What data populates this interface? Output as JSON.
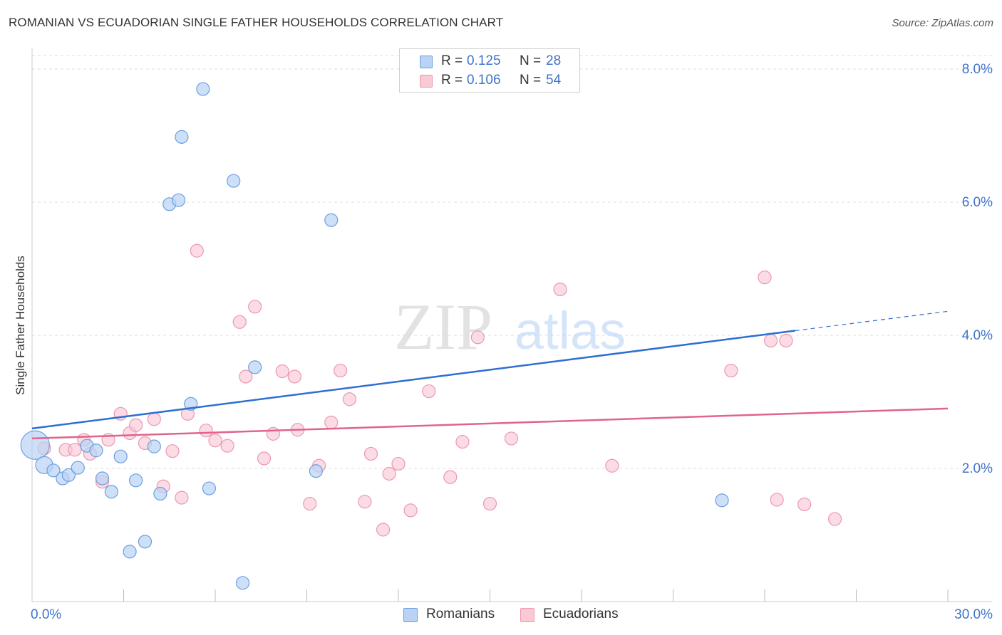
{
  "header": {
    "title": "ROMANIAN VS ECUADORIAN SINGLE FATHER HOUSEHOLDS CORRELATION CHART",
    "source": "Source: ZipAtlas.com"
  },
  "legend_top": {
    "rows": [
      {
        "r_label": "R =",
        "r_value": "0.125",
        "n_label": "N =",
        "n_value": "28"
      },
      {
        "r_label": "R =",
        "r_value": "0.106",
        "n_label": "N =",
        "n_value": "54"
      }
    ]
  },
  "legend_bottom": {
    "items": [
      "Romanians",
      "Ecuadorians"
    ]
  },
  "watermark": {
    "zip": "ZIP",
    "atlas": "atlas"
  },
  "colors": {
    "romanians_fill": "#b9d3f5",
    "romanians_stroke": "#6b9ee0",
    "romanians_line": "#2d6fd2",
    "ecuadorians_fill": "#f9c9d6",
    "ecuadorians_stroke": "#ec97b2",
    "ecuadorians_line": "#e0648c",
    "tick_label": "#3f74c9",
    "grid": "#dcdcdc"
  },
  "chart_data": {
    "type": "scatter",
    "title": "ROMANIAN VS ECUADORIAN SINGLE FATHER HOUSEHOLDS CORRELATION CHART",
    "xlabel": "",
    "ylabel": "Single Father Households",
    "xlim": [
      0,
      30
    ],
    "ylim": [
      0,
      8.4
    ],
    "x_tick_labels": [
      "0.0%",
      "30.0%"
    ],
    "y_ticks": [
      2,
      4,
      6,
      8
    ],
    "y_tick_labels": [
      "2.0%",
      "4.0%",
      "6.0%",
      "8.0%"
    ],
    "grid": true,
    "legend_position": "top-center",
    "series": [
      {
        "name": "Romanians",
        "r": 0.125,
        "n": 28,
        "trend": {
          "x0": 0,
          "y0": 2.6,
          "x1": 25,
          "y1": 4.07,
          "dashed_to_x": 30,
          "dashed_to_y": 4.36
        },
        "points": [
          [
            0.1,
            2.35,
            20
          ],
          [
            0.4,
            2.05,
            12
          ],
          [
            0.7,
            1.97,
            9
          ],
          [
            1.0,
            1.85,
            9
          ],
          [
            1.2,
            1.9,
            9
          ],
          [
            1.5,
            2.01,
            9
          ],
          [
            1.8,
            2.34,
            9
          ],
          [
            2.1,
            2.27,
            9
          ],
          [
            2.3,
            1.85,
            9
          ],
          [
            2.6,
            1.65,
            9
          ],
          [
            2.9,
            2.18,
            9
          ],
          [
            3.2,
            0.75,
            9
          ],
          [
            3.4,
            1.82,
            9
          ],
          [
            3.7,
            0.9,
            9
          ],
          [
            4.0,
            2.33,
            9
          ],
          [
            4.2,
            1.62,
            9
          ],
          [
            4.5,
            5.97,
            9
          ],
          [
            4.8,
            6.03,
            9
          ],
          [
            4.9,
            6.98,
            9
          ],
          [
            5.2,
            2.97,
            9
          ],
          [
            5.6,
            7.7,
            9
          ],
          [
            5.8,
            1.7,
            9
          ],
          [
            6.6,
            6.32,
            9
          ],
          [
            6.9,
            0.28,
            9
          ],
          [
            7.3,
            3.52,
            9
          ],
          [
            9.3,
            1.96,
            9
          ],
          [
            9.8,
            5.73,
            9
          ],
          [
            22.6,
            1.52,
            9
          ]
        ]
      },
      {
        "name": "Ecuadorians",
        "r": 0.106,
        "n": 54,
        "trend": {
          "x0": 0,
          "y0": 2.45,
          "x1": 30,
          "y1": 2.9
        },
        "points": [
          [
            0.4,
            2.3,
            9
          ],
          [
            1.1,
            2.28,
            9
          ],
          [
            1.4,
            2.28,
            9
          ],
          [
            1.7,
            2.43,
            9
          ],
          [
            1.9,
            2.22,
            9
          ],
          [
            2.3,
            1.8,
            9
          ],
          [
            2.5,
            2.43,
            9
          ],
          [
            2.9,
            2.82,
            9
          ],
          [
            3.2,
            2.53,
            9
          ],
          [
            3.4,
            2.65,
            9
          ],
          [
            3.7,
            2.38,
            9
          ],
          [
            4.0,
            2.74,
            9
          ],
          [
            4.3,
            1.73,
            9
          ],
          [
            4.6,
            2.26,
            9
          ],
          [
            4.9,
            1.56,
            9
          ],
          [
            5.1,
            2.82,
            9
          ],
          [
            5.4,
            5.27,
            9
          ],
          [
            5.7,
            2.57,
            9
          ],
          [
            6.0,
            2.42,
            9
          ],
          [
            6.4,
            2.34,
            9
          ],
          [
            6.8,
            4.2,
            9
          ],
          [
            7.0,
            3.38,
            9
          ],
          [
            7.3,
            4.43,
            9
          ],
          [
            7.6,
            2.15,
            9
          ],
          [
            7.9,
            2.52,
            9
          ],
          [
            8.2,
            3.46,
            9
          ],
          [
            8.6,
            3.38,
            9
          ],
          [
            8.7,
            2.58,
            9
          ],
          [
            9.1,
            1.47,
            9
          ],
          [
            9.4,
            2.04,
            9
          ],
          [
            9.8,
            2.69,
            9
          ],
          [
            10.1,
            3.47,
            9
          ],
          [
            10.4,
            3.04,
            9
          ],
          [
            10.9,
            1.5,
            9
          ],
          [
            11.1,
            2.22,
            9
          ],
          [
            11.5,
            1.08,
            9
          ],
          [
            11.7,
            1.92,
            9
          ],
          [
            12.0,
            2.07,
            9
          ],
          [
            12.4,
            1.37,
            9
          ],
          [
            13.0,
            3.16,
            9
          ],
          [
            13.7,
            1.87,
            9
          ],
          [
            14.1,
            2.4,
            9
          ],
          [
            14.6,
            3.97,
            9
          ],
          [
            15.0,
            1.47,
            9
          ],
          [
            15.7,
            2.45,
            9
          ],
          [
            17.3,
            4.69,
            9
          ],
          [
            19.0,
            2.04,
            9
          ],
          [
            22.9,
            3.47,
            9
          ],
          [
            24.0,
            4.87,
            9
          ],
          [
            24.2,
            3.92,
            9
          ],
          [
            24.4,
            1.53,
            9
          ],
          [
            24.7,
            3.92,
            9
          ],
          [
            25.3,
            1.46,
            9
          ],
          [
            26.3,
            1.24,
            9
          ]
        ]
      }
    ]
  }
}
